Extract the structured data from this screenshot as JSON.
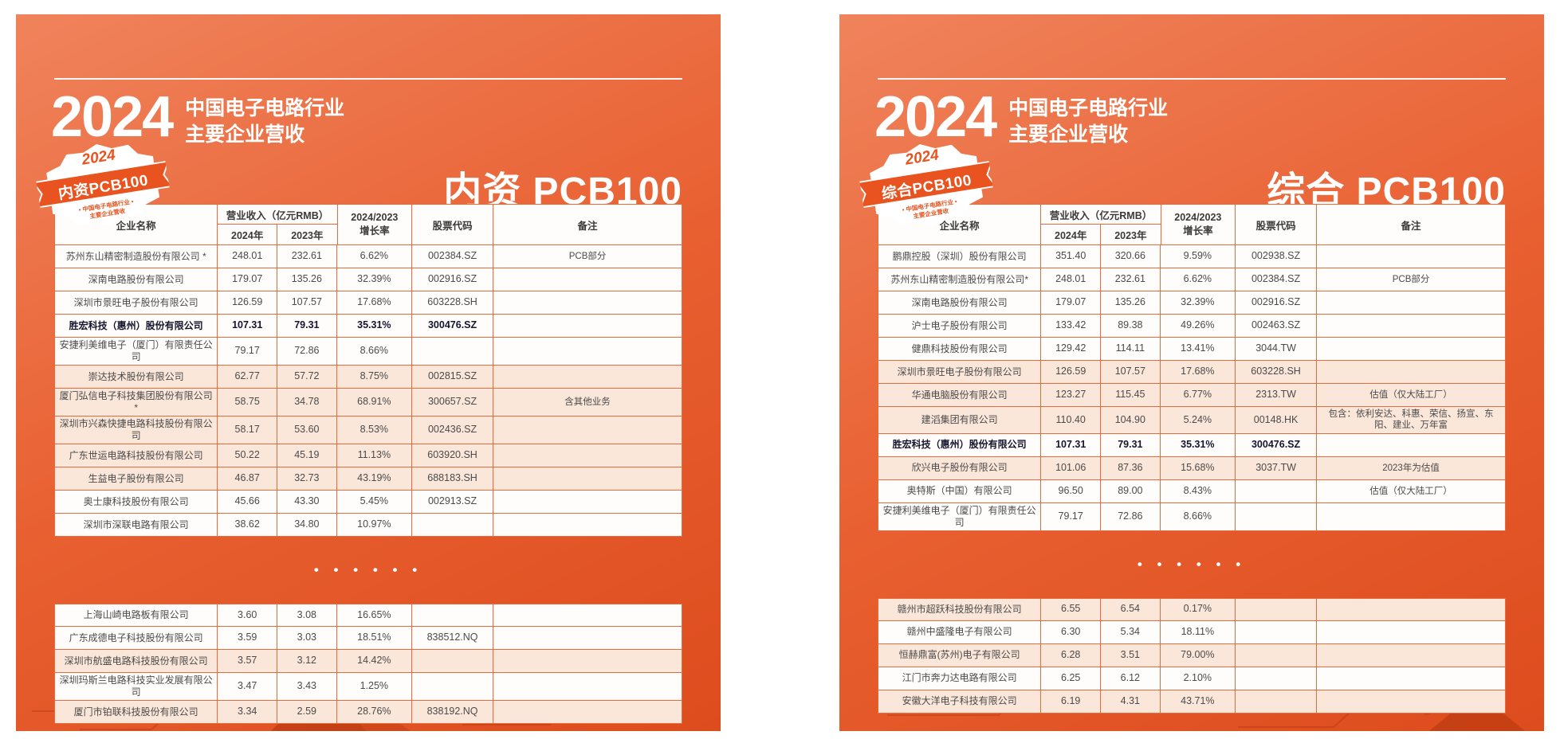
{
  "colors": {
    "panel_orange": "#E85F30",
    "table_line": "#E96A3C",
    "row_shade": "#FBE7DA",
    "text_dark": "#4A4A4A",
    "highlight_text": "#15152E",
    "accent": "#E8531F"
  },
  "panels": [
    {
      "title": {
        "year": "2024",
        "line1": "中国电子电路行业",
        "line2": "主要企业营收"
      },
      "badge": {
        "year": "2024",
        "label": "内资PCB100",
        "sub1": "• 中国电子电路行业 •",
        "sub2": "主要企业营收"
      },
      "heading": "内资 PCB100",
      "table": {
        "headers": {
          "company": "企业名称",
          "revenue_group": "营业收入（亿元RMB）",
          "y2024": "2024年",
          "y2023": "2023年",
          "growth_line1": "2024/2023",
          "growth_line2": "增长率",
          "code": "股票代码",
          "note": "备注"
        },
        "ellipsis": "• • •  • • •",
        "top_rows": [
          {
            "name": "苏州东山精密制造股份有限公司 *",
            "y2024": "248.01",
            "y2023": "232.61",
            "growth": "6.62%",
            "code": "002384.SZ",
            "note": "PCB部分",
            "bold": false,
            "shade": false
          },
          {
            "name": "深南电路股份有限公司",
            "y2024": "179.07",
            "y2023": "135.26",
            "growth": "32.39%",
            "code": "002916.SZ",
            "note": "",
            "bold": false,
            "shade": false
          },
          {
            "name": "深圳市景旺电子股份有限公司",
            "y2024": "126.59",
            "y2023": "107.57",
            "growth": "17.68%",
            "code": "603228.SH",
            "note": "",
            "bold": false,
            "shade": false
          },
          {
            "name": "胜宏科技（惠州）股份有限公司",
            "y2024": "107.31",
            "y2023": "79.31",
            "growth": "35.31%",
            "code": "300476.SZ",
            "note": "",
            "bold": true,
            "shade": false
          },
          {
            "name": "安捷利美维电子（厦门）有限责任公司",
            "y2024": "79.17",
            "y2023": "72.86",
            "growth": "8.66%",
            "code": "",
            "note": "",
            "bold": false,
            "shade": false
          },
          {
            "name": "崇达技术股份有限公司",
            "y2024": "62.77",
            "y2023": "57.72",
            "growth": "8.75%",
            "code": "002815.SZ",
            "note": "",
            "bold": false,
            "shade": true
          },
          {
            "name": "厦门弘信电子科技集团股份有限公司 *",
            "y2024": "58.75",
            "y2023": "34.78",
            "growth": "68.91%",
            "code": "300657.SZ",
            "note": "含其他业务",
            "bold": false,
            "shade": true
          },
          {
            "name": "深圳市兴森快捷电路科技股份有限公司",
            "y2024": "58.17",
            "y2023": "53.60",
            "growth": "8.53%",
            "code": "002436.SZ",
            "note": "",
            "bold": false,
            "shade": true
          },
          {
            "name": "广东世运电路科技股份有限公司",
            "y2024": "50.22",
            "y2023": "45.19",
            "growth": "11.13%",
            "code": "603920.SH",
            "note": "",
            "bold": false,
            "shade": true
          },
          {
            "name": "生益电子股份有限公司",
            "y2024": "46.87",
            "y2023": "32.73",
            "growth": "43.19%",
            "code": "688183.SH",
            "note": "",
            "bold": false,
            "shade": true
          },
          {
            "name": "奥士康科技股份有限公司",
            "y2024": "45.66",
            "y2023": "43.30",
            "growth": "5.45%",
            "code": "002913.SZ",
            "note": "",
            "bold": false,
            "shade": false
          },
          {
            "name": "深圳市深联电路有限公司",
            "y2024": "38.62",
            "y2023": "34.80",
            "growth": "10.97%",
            "code": "",
            "note": "",
            "bold": false,
            "shade": false
          }
        ],
        "bottom_rows": [
          {
            "name": "上海山崎电路板有限公司",
            "y2024": "3.60",
            "y2023": "3.08",
            "growth": "16.65%",
            "code": "",
            "note": "",
            "bold": false,
            "shade": false
          },
          {
            "name": "广东成德电子科技股份有限公司",
            "y2024": "3.59",
            "y2023": "3.03",
            "growth": "18.51%",
            "code": "838512.NQ",
            "note": "",
            "bold": false,
            "shade": false
          },
          {
            "name": "深圳市航盛电路科技股份有限公司",
            "y2024": "3.57",
            "y2023": "3.12",
            "growth": "14.42%",
            "code": "",
            "note": "",
            "bold": false,
            "shade": true
          },
          {
            "name": "深圳玛斯兰电路科技实业发展有限公司",
            "y2024": "3.47",
            "y2023": "3.43",
            "growth": "1.25%",
            "code": "",
            "note": "",
            "bold": false,
            "shade": false
          },
          {
            "name": "厦门市铂联科技股份有限公司",
            "y2024": "3.34",
            "y2023": "2.59",
            "growth": "28.76%",
            "code": "838192.NQ",
            "note": "",
            "bold": false,
            "shade": true
          }
        ]
      }
    },
    {
      "title": {
        "year": "2024",
        "line1": "中国电子电路行业",
        "line2": "主要企业营收"
      },
      "badge": {
        "year": "2024",
        "label": "综合PCB100",
        "sub1": "• 中国电子电路行业 •",
        "sub2": "主要企业营收"
      },
      "heading": "综合 PCB100",
      "table": {
        "headers": {
          "company": "企业名称",
          "revenue_group": "营业收入（亿元RMB）",
          "y2024": "2024年",
          "y2023": "2023年",
          "growth_line1": "2024/2023",
          "growth_line2": "增长率",
          "code": "股票代码",
          "note": "备注"
        },
        "ellipsis": "• • •  • • •",
        "top_rows": [
          {
            "name": "鹏鼎控股（深圳）股份有限公司",
            "y2024": "351.40",
            "y2023": "320.66",
            "growth": "9.59%",
            "code": "002938.SZ",
            "note": "",
            "bold": false,
            "shade": false
          },
          {
            "name": "苏州东山精密制造股份有限公司*",
            "y2024": "248.01",
            "y2023": "232.61",
            "growth": "6.62%",
            "code": "002384.SZ",
            "note": "PCB部分",
            "bold": false,
            "shade": false
          },
          {
            "name": "深南电路股份有限公司",
            "y2024": "179.07",
            "y2023": "135.26",
            "growth": "32.39%",
            "code": "002916.SZ",
            "note": "",
            "bold": false,
            "shade": false
          },
          {
            "name": "沪士电子股份有限公司",
            "y2024": "133.42",
            "y2023": "89.38",
            "growth": "49.26%",
            "code": "002463.SZ",
            "note": "",
            "bold": false,
            "shade": false
          },
          {
            "name": "健鼎科技股份有限公司",
            "y2024": "129.42",
            "y2023": "114.11",
            "growth": "13.41%",
            "code": "3044.TW",
            "note": "",
            "bold": false,
            "shade": false
          },
          {
            "name": "深圳市景旺电子股份有限公司",
            "y2024": "126.59",
            "y2023": "107.57",
            "growth": "17.68%",
            "code": "603228.SH",
            "note": "",
            "bold": false,
            "shade": true
          },
          {
            "name": "华通电脑股份有限公司",
            "y2024": "123.27",
            "y2023": "115.45",
            "growth": "6.77%",
            "code": "2313.TW",
            "note": "估值（仅大陆工厂）",
            "bold": false,
            "shade": true
          },
          {
            "name": "建滔集团有限公司",
            "y2024": "110.40",
            "y2023": "104.90",
            "growth": "5.24%",
            "code": "00148.HK",
            "note": "包含：依利安达、科惠、荣信、扬宣、东阳、建业、万年富",
            "bold": false,
            "shade": true
          },
          {
            "name": "胜宏科技（惠州）股份有限公司",
            "y2024": "107.31",
            "y2023": "79.31",
            "growth": "35.31%",
            "code": "300476.SZ",
            "note": "",
            "bold": true,
            "shade": false
          },
          {
            "name": "欣兴电子股份有限公司",
            "y2024": "101.06",
            "y2023": "87.36",
            "growth": "15.68%",
            "code": "3037.TW",
            "note": "2023年为估值",
            "bold": false,
            "shade": true
          },
          {
            "name": "奥特斯（中国）有限公司",
            "y2024": "96.50",
            "y2023": "89.00",
            "growth": "8.43%",
            "code": "",
            "note": "估值（仅大陆工厂）",
            "bold": false,
            "shade": false
          },
          {
            "name": "安捷利美维电子（厦门）有限责任公司",
            "y2024": "79.17",
            "y2023": "72.86",
            "growth": "8.66%",
            "code": "",
            "note": "",
            "bold": false,
            "shade": false
          }
        ],
        "bottom_rows": [
          {
            "name": "赣州市超跃科技股份有限公司",
            "y2024": "6.55",
            "y2023": "6.54",
            "growth": "0.17%",
            "code": "",
            "note": "",
            "bold": false,
            "shade": true
          },
          {
            "name": "赣州中盛隆电子有限公司",
            "y2024": "6.30",
            "y2023": "5.34",
            "growth": "18.11%",
            "code": "",
            "note": "",
            "bold": false,
            "shade": false
          },
          {
            "name": "恒赫鼎富(苏州)电子有限公司",
            "y2024": "6.28",
            "y2023": "3.51",
            "growth": "79.00%",
            "code": "",
            "note": "",
            "bold": false,
            "shade": true
          },
          {
            "name": "江门市奔力达电路有限公司",
            "y2024": "6.25",
            "y2023": "6.12",
            "growth": "2.10%",
            "code": "",
            "note": "",
            "bold": false,
            "shade": false
          },
          {
            "name": "安徽大洋电子科技有限公司",
            "y2024": "6.19",
            "y2023": "4.31",
            "growth": "43.71%",
            "code": "",
            "note": "",
            "bold": false,
            "shade": true
          }
        ]
      }
    }
  ]
}
